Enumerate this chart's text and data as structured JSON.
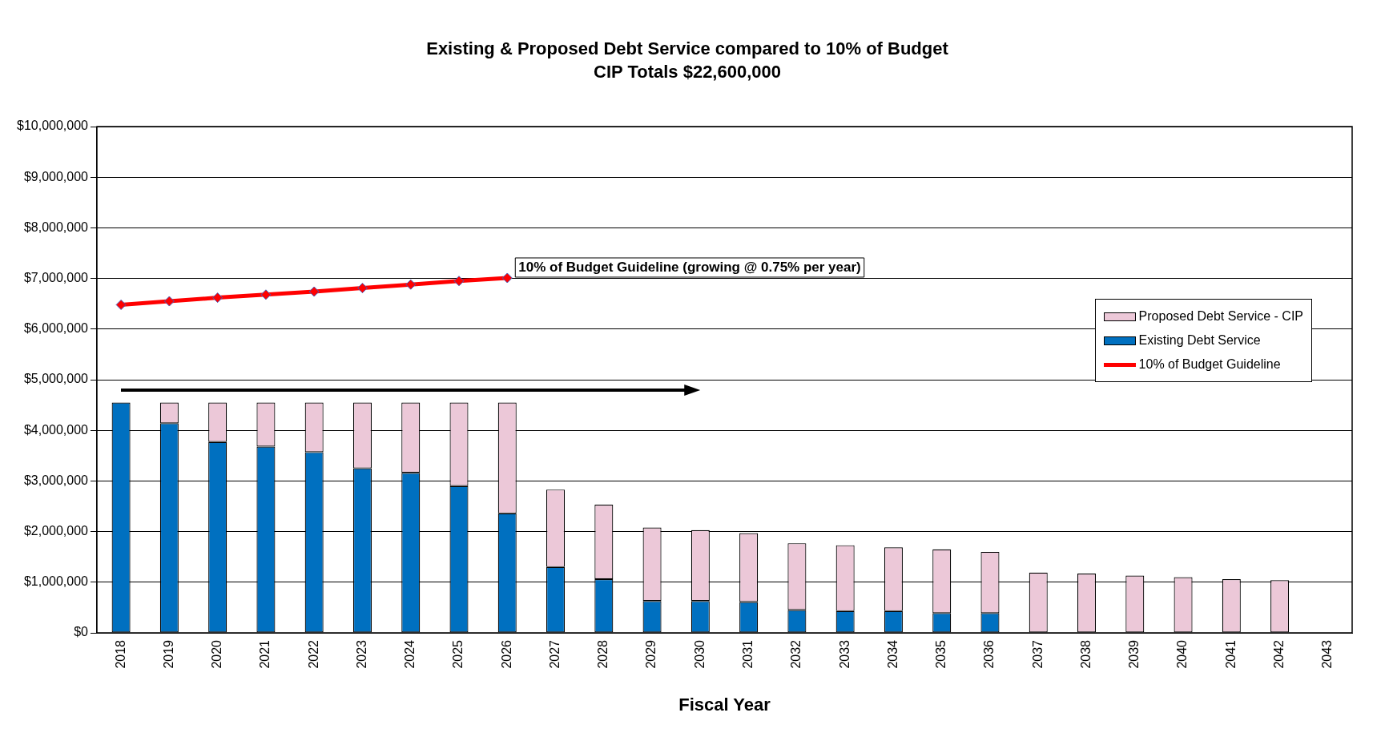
{
  "chart_data": {
    "type": "bar",
    "title": "Existing & Proposed Debt Service compared to 10% of Budget",
    "subtitle": "CIP Totals $22,600,000",
    "xlabel": "Fiscal Year",
    "categories": [
      "2018",
      "2019",
      "2020",
      "2021",
      "2022",
      "2023",
      "2024",
      "2025",
      "2026",
      "2027",
      "2028",
      "2029",
      "2030",
      "2031",
      "2032",
      "2033",
      "2034",
      "2035",
      "2036",
      "2037",
      "2038",
      "2039",
      "2040",
      "2041",
      "2042",
      "2043"
    ],
    "stacked": true,
    "series": [
      {
        "name": "Existing Debt Service",
        "color": "#0070c0",
        "values": [
          4550000,
          4140000,
          3770000,
          3680000,
          3570000,
          3250000,
          3160000,
          2900000,
          2360000,
          1300000,
          1060000,
          630000,
          630000,
          610000,
          450000,
          430000,
          430000,
          390000,
          390000,
          null,
          null,
          null,
          null,
          null,
          null,
          null
        ]
      },
      {
        "name": "Proposed Debt Service - CIP",
        "color": "#ecc8d8",
        "values": [
          null,
          410000,
          780000,
          870000,
          980000,
          1300000,
          1390000,
          1650000,
          2190000,
          1530000,
          1470000,
          1450000,
          1400000,
          1360000,
          1320000,
          1300000,
          1260000,
          1260000,
          1210000,
          1190000,
          1170000,
          1130000,
          1100000,
          1060000,
          1040000,
          null
        ]
      },
      {
        "name": "10% of Budget Guideline",
        "type": "line",
        "color": "#ff0000",
        "marker": "diamond",
        "line_style": "solid",
        "values": [
          6480000,
          6550000,
          6620000,
          6680000,
          6740000,
          6810000,
          6880000,
          6950000,
          7010000,
          null,
          null,
          null,
          null,
          null,
          null,
          null,
          null,
          null,
          null,
          null,
          null,
          null,
          null,
          null,
          null,
          null
        ]
      }
    ],
    "ylim": [
      0,
      10000000
    ],
    "yticks": [
      {
        "value": 0,
        "label": "$0"
      },
      {
        "value": 1000000,
        "label": "$1,000,000"
      },
      {
        "value": 2000000,
        "label": "$2,000,000"
      },
      {
        "value": 3000000,
        "label": "$3,000,000"
      },
      {
        "value": 4000000,
        "label": "$4,000,000"
      },
      {
        "value": 5000000,
        "label": "$5,000,000"
      },
      {
        "value": 6000000,
        "label": "$6,000,000"
      },
      {
        "value": 7000000,
        "label": "$7,000,000"
      },
      {
        "value": 8000000,
        "label": "$8,000,000"
      },
      {
        "value": 9000000,
        "label": "$9,000,000"
      },
      {
        "value": 10000000,
        "label": "$10,000,000"
      }
    ],
    "grid": "y",
    "legend": "top right",
    "annotations": [
      {
        "text": "10% of Budget Guideline (growing @ 0.75% per year)",
        "x": "2026",
        "y": 7010000
      }
    ]
  }
}
